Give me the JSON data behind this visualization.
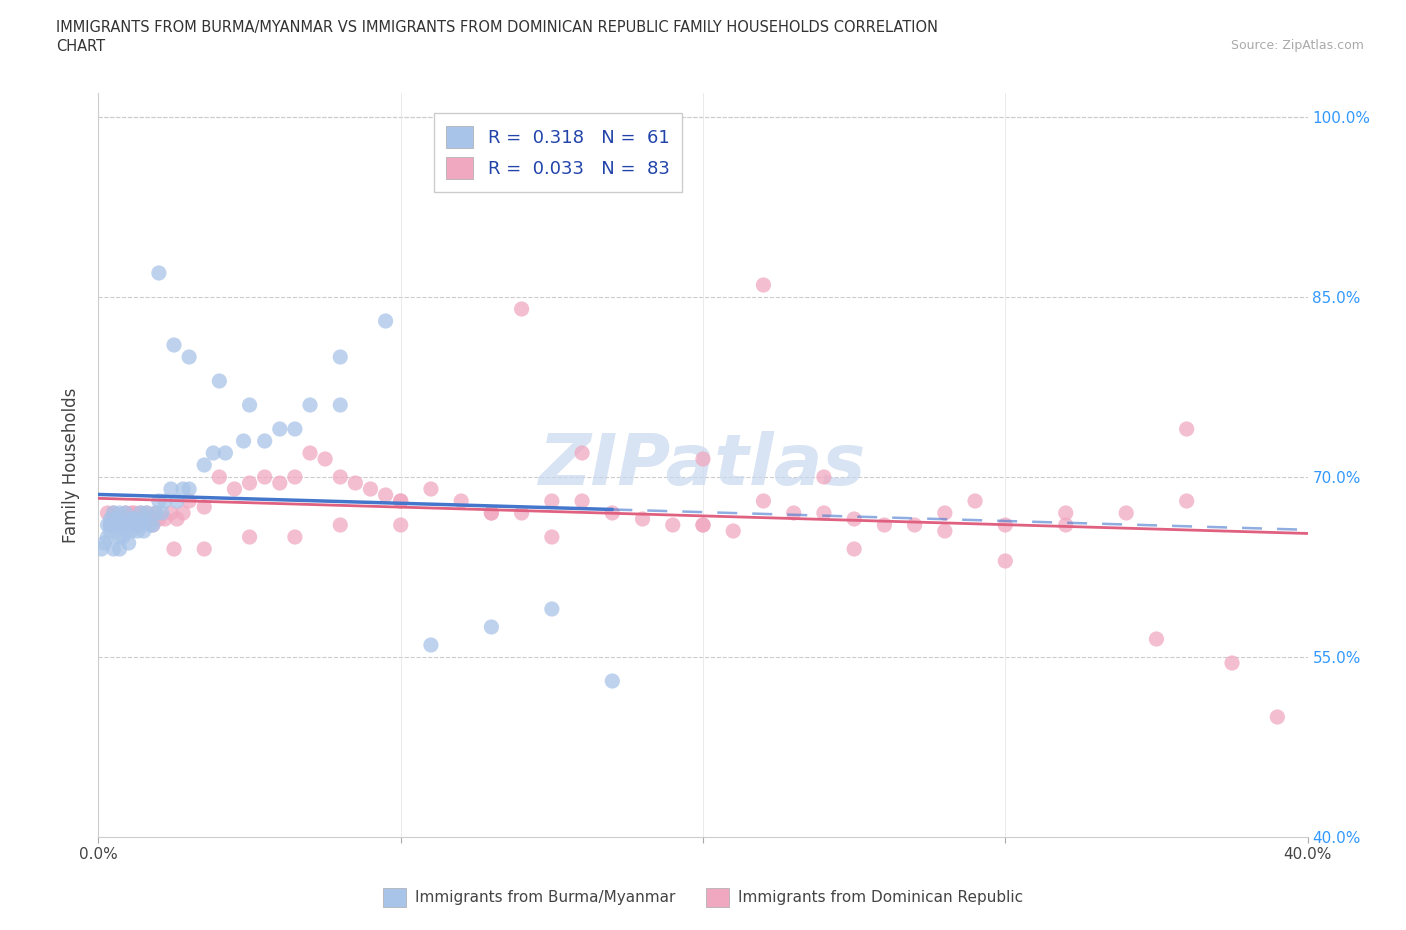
{
  "title_line1": "IMMIGRANTS FROM BURMA/MYANMAR VS IMMIGRANTS FROM DOMINICAN REPUBLIC FAMILY HOUSEHOLDS CORRELATION",
  "title_line2": "CHART",
  "source": "Source: ZipAtlas.com",
  "ylabel": "Family Households",
  "xlim": [
    0.0,
    0.4
  ],
  "ylim": [
    0.4,
    1.02
  ],
  "xtick_positions": [
    0.0,
    0.1,
    0.2,
    0.3,
    0.4
  ],
  "xtick_labels": [
    "0.0%",
    "",
    "",
    "",
    "40.0%"
  ],
  "ytick_positions": [
    0.4,
    0.475,
    0.55,
    0.625,
    0.7,
    0.775,
    0.85,
    0.925,
    1.0
  ],
  "ytick_labels_right": [
    "40.0%",
    "",
    "55.0%",
    "",
    "70.0%",
    "",
    "85.0%",
    "",
    "100.0%"
  ],
  "r_burma": 0.318,
  "n_burma": 61,
  "r_dominican": 0.033,
  "n_dominican": 83,
  "color_burma": "#a8c4e8",
  "color_dominican": "#f0a8c0",
  "line_color_burma": "#4477cc",
  "line_color_dominican": "#e06080",
  "watermark": "ZIPatlas",
  "watermark_color": "#c8d8ee",
  "legend_labels": [
    "Immigrants from Burma/Myanmar",
    "Immigrants from Dominican Republic"
  ],
  "burma_x": [
    0.001,
    0.002,
    0.003,
    0.003,
    0.004,
    0.004,
    0.004,
    0.005,
    0.005,
    0.005,
    0.006,
    0.006,
    0.007,
    0.007,
    0.007,
    0.008,
    0.008,
    0.009,
    0.009,
    0.01,
    0.01,
    0.011,
    0.011,
    0.012,
    0.012,
    0.013,
    0.014,
    0.014,
    0.015,
    0.015,
    0.016,
    0.017,
    0.018,
    0.019,
    0.02,
    0.021,
    0.022,
    0.024,
    0.026,
    0.028,
    0.03,
    0.035,
    0.038,
    0.042,
    0.048,
    0.055,
    0.06,
    0.07,
    0.08,
    0.095,
    0.11,
    0.13,
    0.15,
    0.17,
    0.02,
    0.025,
    0.03,
    0.04,
    0.05,
    0.065,
    0.08
  ],
  "burma_y": [
    0.64,
    0.645,
    0.65,
    0.66,
    0.655,
    0.66,
    0.665,
    0.64,
    0.66,
    0.67,
    0.66,
    0.665,
    0.64,
    0.65,
    0.67,
    0.65,
    0.66,
    0.655,
    0.67,
    0.645,
    0.66,
    0.655,
    0.665,
    0.66,
    0.665,
    0.655,
    0.66,
    0.67,
    0.655,
    0.665,
    0.67,
    0.66,
    0.66,
    0.67,
    0.68,
    0.67,
    0.68,
    0.69,
    0.68,
    0.69,
    0.69,
    0.71,
    0.72,
    0.72,
    0.73,
    0.73,
    0.74,
    0.76,
    0.8,
    0.83,
    0.56,
    0.575,
    0.59,
    0.53,
    0.87,
    0.81,
    0.8,
    0.78,
    0.76,
    0.74,
    0.76
  ],
  "dominican_x": [
    0.003,
    0.004,
    0.005,
    0.006,
    0.007,
    0.008,
    0.009,
    0.01,
    0.011,
    0.012,
    0.013,
    0.014,
    0.015,
    0.016,
    0.017,
    0.018,
    0.019,
    0.02,
    0.022,
    0.024,
    0.026,
    0.028,
    0.03,
    0.035,
    0.04,
    0.045,
    0.05,
    0.055,
    0.06,
    0.065,
    0.07,
    0.075,
    0.08,
    0.085,
    0.09,
    0.095,
    0.1,
    0.11,
    0.12,
    0.13,
    0.14,
    0.15,
    0.16,
    0.17,
    0.18,
    0.19,
    0.2,
    0.21,
    0.22,
    0.23,
    0.24,
    0.25,
    0.26,
    0.27,
    0.28,
    0.29,
    0.3,
    0.32,
    0.34,
    0.36,
    0.025,
    0.035,
    0.05,
    0.065,
    0.08,
    0.1,
    0.13,
    0.16,
    0.2,
    0.24,
    0.28,
    0.32,
    0.35,
    0.375,
    0.39,
    0.1,
    0.15,
    0.2,
    0.25,
    0.3,
    0.14,
    0.22,
    0.36
  ],
  "dominican_y": [
    0.67,
    0.66,
    0.67,
    0.665,
    0.66,
    0.665,
    0.67,
    0.665,
    0.67,
    0.67,
    0.66,
    0.67,
    0.665,
    0.67,
    0.665,
    0.66,
    0.67,
    0.665,
    0.665,
    0.67,
    0.665,
    0.67,
    0.68,
    0.675,
    0.7,
    0.69,
    0.695,
    0.7,
    0.695,
    0.7,
    0.72,
    0.715,
    0.7,
    0.695,
    0.69,
    0.685,
    0.68,
    0.69,
    0.68,
    0.67,
    0.67,
    0.68,
    0.68,
    0.67,
    0.665,
    0.66,
    0.66,
    0.655,
    0.68,
    0.67,
    0.67,
    0.665,
    0.66,
    0.66,
    0.655,
    0.68,
    0.66,
    0.67,
    0.67,
    0.68,
    0.64,
    0.64,
    0.65,
    0.65,
    0.66,
    0.66,
    0.67,
    0.72,
    0.715,
    0.7,
    0.67,
    0.66,
    0.565,
    0.545,
    0.5,
    0.68,
    0.65,
    0.66,
    0.64,
    0.63,
    0.84,
    0.86,
    0.74
  ],
  "burma_reg": [
    0.0,
    0.17
  ],
  "burma_reg_ext": [
    0.17,
    0.4
  ],
  "dominican_reg": [
    0.0,
    0.4
  ]
}
